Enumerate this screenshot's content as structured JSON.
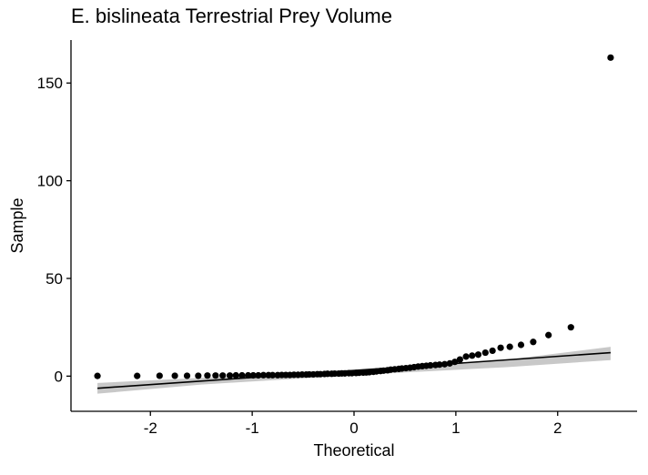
{
  "chart_data": {
    "type": "scatter",
    "title": "E. bislineata Terrestrial Prey Volume",
    "xlabel": "Theoretical",
    "ylabel": "Sample",
    "xlim": [
      -2.78,
      2.78
    ],
    "ylim": [
      -18,
      172
    ],
    "xticks": [
      -2,
      -1,
      0,
      1,
      2
    ],
    "yticks": [
      0,
      50,
      100,
      150
    ],
    "grid": false,
    "colors": {
      "points": "#000000",
      "line": "#000000",
      "band": "#c8c8c8"
    },
    "reference_line": {
      "x": [
        -2.52,
        2.52
      ],
      "y": [
        -6.2,
        12.0
      ]
    },
    "confidence_band": {
      "x": [
        -2.52,
        -1.5,
        0.0,
        1.5,
        2.52
      ],
      "lower": [
        -9.0,
        -4.3,
        0.5,
        4.6,
        8.2
      ],
      "upper": [
        -3.5,
        -0.9,
        2.1,
        8.4,
        15.0
      ]
    },
    "points": [
      [
        -2.52,
        0.1
      ],
      [
        -2.13,
        0.1
      ],
      [
        -1.91,
        0.2
      ],
      [
        -1.76,
        0.2
      ],
      [
        -1.64,
        0.2
      ],
      [
        -1.53,
        0.2
      ],
      [
        -1.44,
        0.3
      ],
      [
        -1.36,
        0.3
      ],
      [
        -1.29,
        0.3
      ],
      [
        -1.22,
        0.3
      ],
      [
        -1.16,
        0.4
      ],
      [
        -1.1,
        0.4
      ],
      [
        -1.04,
        0.4
      ],
      [
        -0.99,
        0.4
      ],
      [
        -0.94,
        0.4
      ],
      [
        -0.89,
        0.5
      ],
      [
        -0.84,
        0.5
      ],
      [
        -0.8,
        0.5
      ],
      [
        -0.75,
        0.5
      ],
      [
        -0.71,
        0.6
      ],
      [
        -0.67,
        0.6
      ],
      [
        -0.63,
        0.6
      ],
      [
        -0.59,
        0.7
      ],
      [
        -0.55,
        0.7
      ],
      [
        -0.51,
        0.8
      ],
      [
        -0.47,
        0.8
      ],
      [
        -0.44,
        0.9
      ],
      [
        -0.4,
        0.9
      ],
      [
        -0.36,
        1.0
      ],
      [
        -0.33,
        1.0
      ],
      [
        -0.29,
        1.1
      ],
      [
        -0.26,
        1.2
      ],
      [
        -0.22,
        1.2
      ],
      [
        -0.19,
        1.3
      ],
      [
        -0.15,
        1.3
      ],
      [
        -0.12,
        1.4
      ],
      [
        -0.09,
        1.4
      ],
      [
        -0.05,
        1.5
      ],
      [
        -0.02,
        1.5
      ],
      [
        0.02,
        1.6
      ],
      [
        0.05,
        1.7
      ],
      [
        0.09,
        1.8
      ],
      [
        0.12,
        1.9
      ],
      [
        0.15,
        2.0
      ],
      [
        0.19,
        2.2
      ],
      [
        0.22,
        2.4
      ],
      [
        0.26,
        2.6
      ],
      [
        0.29,
        2.8
      ],
      [
        0.33,
        3.0
      ],
      [
        0.36,
        3.3
      ],
      [
        0.4,
        3.5
      ],
      [
        0.44,
        3.7
      ],
      [
        0.47,
        3.9
      ],
      [
        0.51,
        4.1
      ],
      [
        0.55,
        4.3
      ],
      [
        0.59,
        4.6
      ],
      [
        0.63,
        4.9
      ],
      [
        0.67,
        5.1
      ],
      [
        0.71,
        5.3
      ],
      [
        0.75,
        5.5
      ],
      [
        0.8,
        5.7
      ],
      [
        0.84,
        5.9
      ],
      [
        0.89,
        6.1
      ],
      [
        0.94,
        6.5
      ],
      [
        0.99,
        7.3
      ],
      [
        1.04,
        8.5
      ],
      [
        1.1,
        10.0
      ],
      [
        1.16,
        10.5
      ],
      [
        1.22,
        11.0
      ],
      [
        1.29,
        12.0
      ],
      [
        1.36,
        13.0
      ],
      [
        1.44,
        14.5
      ],
      [
        1.53,
        15.0
      ],
      [
        1.64,
        16.0
      ],
      [
        1.76,
        17.5
      ],
      [
        1.91,
        21.0
      ],
      [
        2.13,
        25.0
      ],
      [
        2.52,
        163.0
      ]
    ]
  }
}
